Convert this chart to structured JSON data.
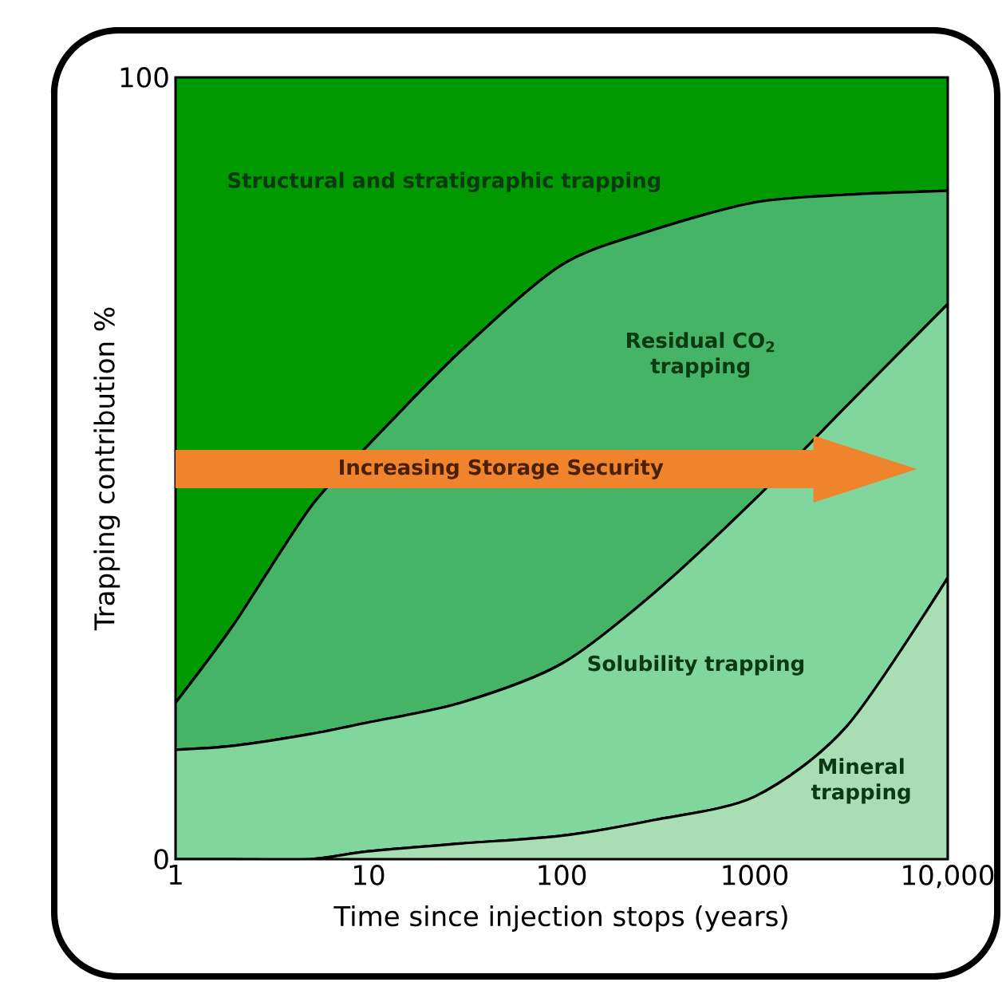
{
  "chart_data": {
    "type": "area",
    "stacked": true,
    "log": "x",
    "xlabel": "Time since injection stops (years)",
    "ylabel": "Trapping contribution %",
    "x": [
      1,
      2,
      5,
      10,
      30,
      100,
      300,
      1000,
      3000,
      10000
    ],
    "xlim": [
      1,
      10000
    ],
    "ylim": [
      0,
      100
    ],
    "xticks": [
      1,
      10,
      100,
      1000,
      {
        "value": 10000,
        "label": "10,000"
      }
    ],
    "yticks": [
      0,
      100
    ],
    "series": [
      {
        "name": "Mineral trapping",
        "color": "#a9deb4",
        "values": [
          0,
          0,
          0,
          1,
          2,
          3,
          5,
          8,
          17,
          36
        ]
      },
      {
        "name": "Solubility trapping",
        "color": "#80d69c",
        "values": [
          14,
          14.5,
          16,
          16.5,
          18,
          22,
          29,
          38,
          41,
          35
        ]
      },
      {
        "name": "Residual CO$_{2}$ trapping",
        "color": "#45b467",
        "values": [
          6,
          15.5,
          29,
          35.5,
          45,
          51,
          46.5,
          38,
          27,
          14.5
        ]
      },
      {
        "name": "Structural and stratigraphic trapping",
        "color": "#009a00",
        "values": [
          80,
          70,
          55,
          47,
          35,
          24,
          19.5,
          16,
          15,
          14.5
        ]
      }
    ],
    "annotations": [
      "Increasing Storage Security"
    ],
    "legend": false
  }
}
